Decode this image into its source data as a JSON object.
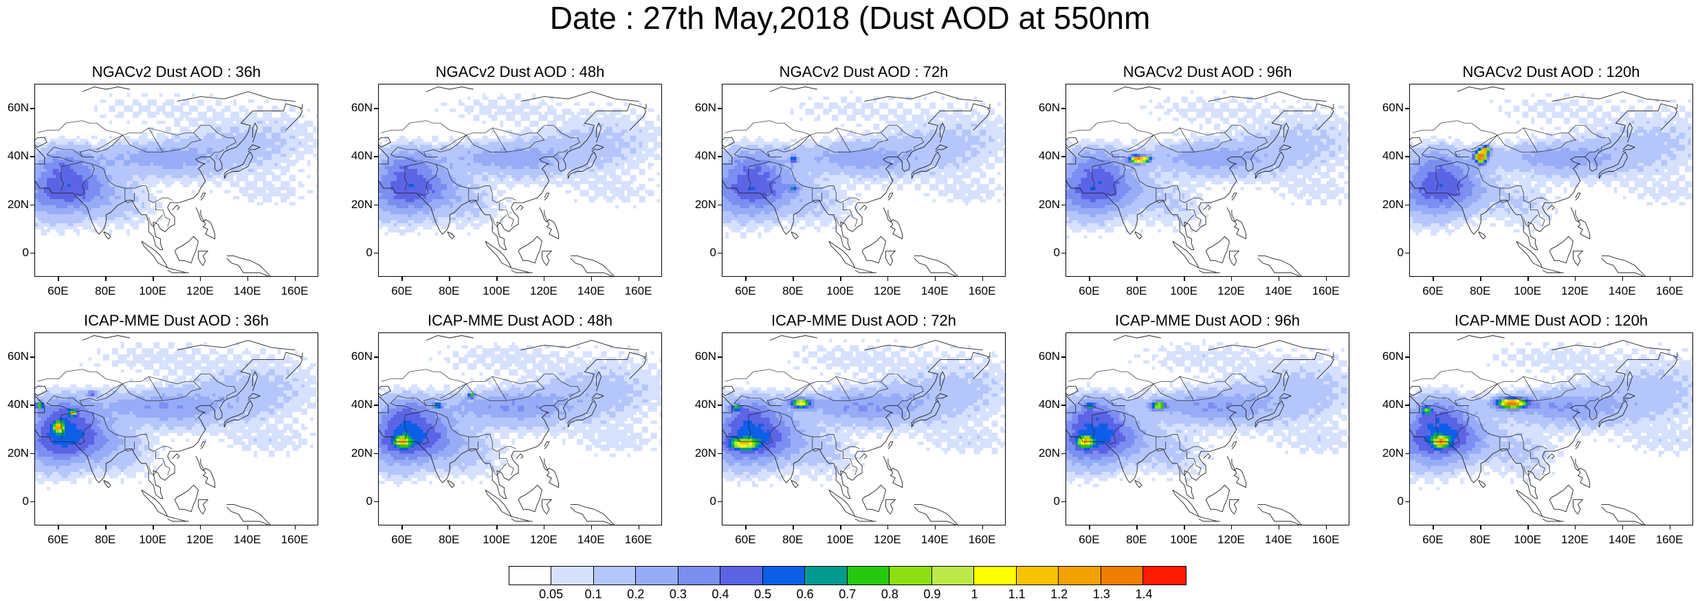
{
  "title": "Date : 27th May,2018 (Dust AOD at 550nm",
  "panels": [
    {
      "title": "NGACv2 Dust AOD : 36h",
      "model": "NGAC",
      "hour": 36
    },
    {
      "title": "NGACv2 Dust AOD : 48h",
      "model": "NGAC",
      "hour": 48
    },
    {
      "title": "NGACv2 Dust AOD : 72h",
      "model": "NGAC",
      "hour": 72
    },
    {
      "title": "NGACv2 Dust AOD : 96h",
      "model": "NGAC",
      "hour": 96
    },
    {
      "title": "NGACv2 Dust AOD : 120h",
      "model": "NGAC",
      "hour": 120
    },
    {
      "title": "ICAP-MME Dust AOD : 36h",
      "model": "ICAP",
      "hour": 36
    },
    {
      "title": "ICAP-MME Dust AOD : 48h",
      "model": "ICAP",
      "hour": 48
    },
    {
      "title": "ICAP-MME Dust AOD : 72h",
      "model": "ICAP",
      "hour": 72
    },
    {
      "title": "ICAP-MME Dust AOD : 96h",
      "model": "ICAP",
      "hour": 96
    },
    {
      "title": "ICAP-MME Dust AOD : 120h",
      "model": "ICAP",
      "hour": 120
    }
  ],
  "lat_ticks": [
    "60N",
    "40N",
    "20N",
    "0"
  ],
  "lon_ticks": [
    "60E",
    "80E",
    "100E",
    "120E",
    "140E",
    "160E"
  ],
  "colorbar": {
    "labels": [
      "0.05",
      "0.1",
      "0.2",
      "0.3",
      "0.4",
      "0.5",
      "0.6",
      "0.7",
      "0.8",
      "0.9",
      "1",
      "1.1",
      "1.2",
      "1.3",
      "1.4"
    ],
    "colors": [
      "#ffffff",
      "#d6e1ff",
      "#b4c6fb",
      "#97acf7",
      "#7b8ef2",
      "#5c64e6",
      "#0c5fe8",
      "#019b8e",
      "#27c90f",
      "#8ddf10",
      "#bcea49",
      "#ffff00",
      "#f8c200",
      "#f4a100",
      "#f37d00",
      "#ff1c00"
    ]
  },
  "chart_data": {
    "type": "heatmap",
    "title": "Date : 27th May,2018 (Dust AOD at 550nm",
    "variable": "Dust AOD at 550nm",
    "rows": [
      "NGACv2",
      "ICAP-MME"
    ],
    "forecast_hours": [
      36,
      48,
      72,
      96,
      120
    ],
    "lon_range": [
      50,
      170
    ],
    "lat_range": [
      -10,
      70
    ],
    "lat_ticks": [
      "60N",
      "40N",
      "20N",
      "0"
    ],
    "lon_ticks": [
      "60E",
      "80E",
      "100E",
      "120E",
      "140E",
      "160E"
    ],
    "levels": [
      0.05,
      0.1,
      0.2,
      0.3,
      0.4,
      0.5,
      0.6,
      0.7,
      0.8,
      0.9,
      1,
      1.1,
      1.2,
      1.3,
      1.4
    ]
  }
}
